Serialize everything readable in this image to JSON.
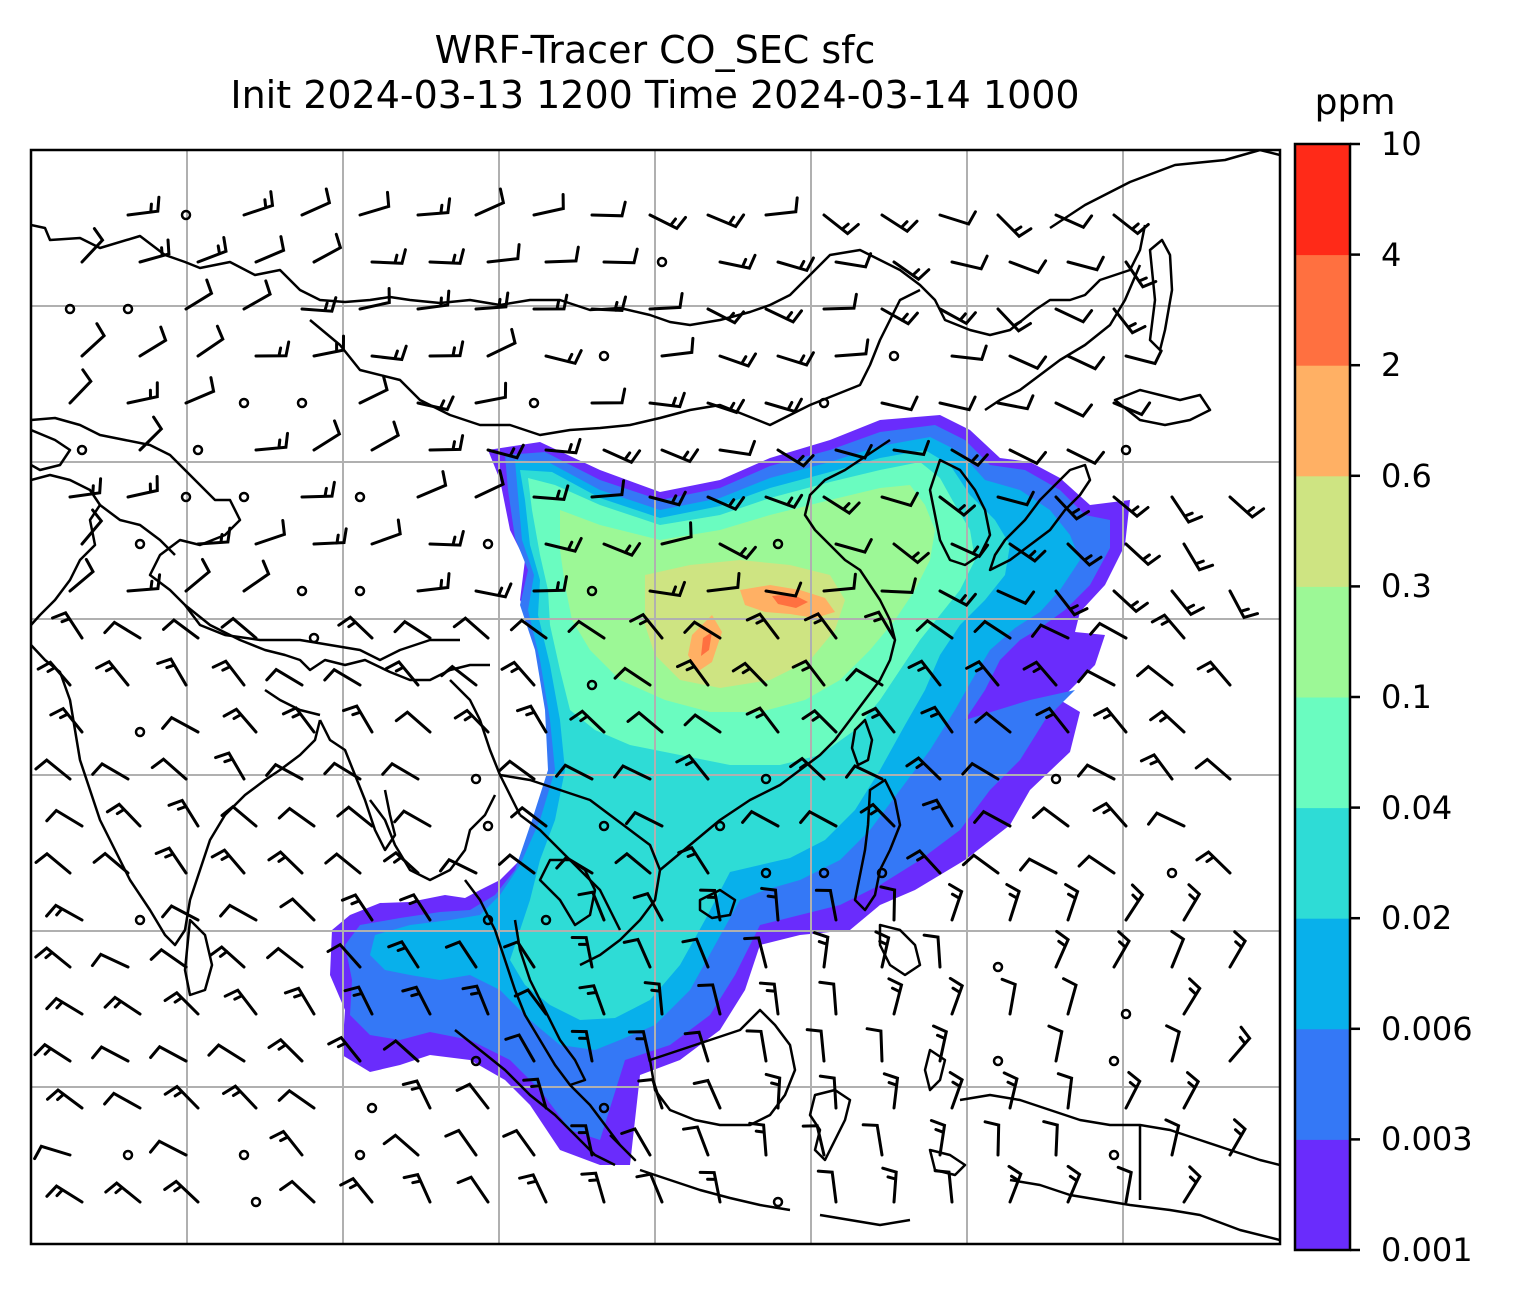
{
  "title": {
    "line1": "WRF-Tracer CO_SEC sfc",
    "line2": "Init 2024-03-13 1200 Time 2024-03-14 1000"
  },
  "colorbar": {
    "unit": "ppm",
    "levels": [
      "0.001",
      "0.003",
      "0.006",
      "0.02",
      "0.04",
      "0.1",
      "0.3",
      "0.6",
      "2",
      "4",
      "10"
    ],
    "colors": [
      "#6a2cfc",
      "#3478f6",
      "#08b0eb",
      "#2edcd6",
      "#6afcc0",
      "#9cf896",
      "#cee482",
      "#ffb064",
      "#ff7040",
      "#ff2a18"
    ]
  },
  "map": {
    "background": "#ffffff",
    "coastline_color": "#000000",
    "gridline_color": "#b0b0b0",
    "barb_color": "#000000",
    "calm_marker": "circle"
  }
}
